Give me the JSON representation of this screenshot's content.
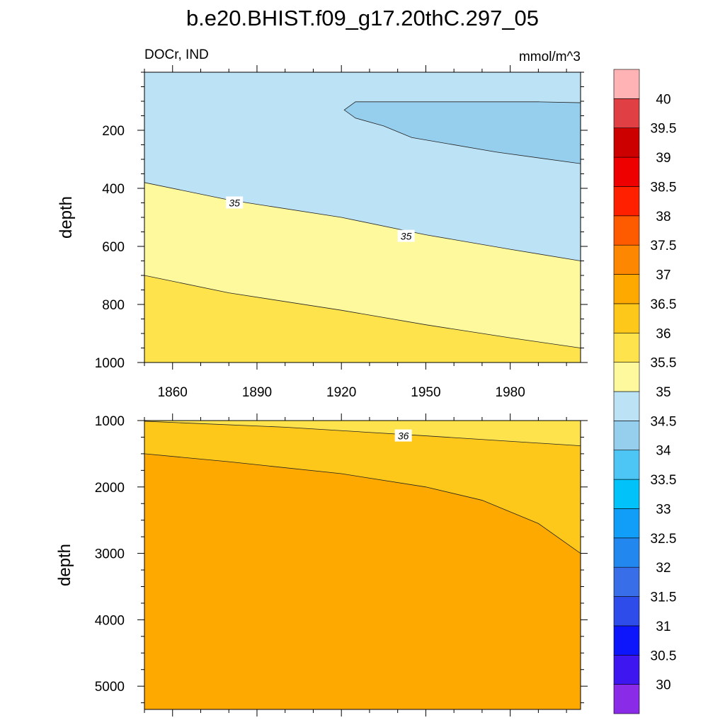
{
  "chart_data": {
    "type": "contour",
    "title": "b.e20.BHIST.f09_g17.20thC.297_05",
    "variable": "DOCr, IND",
    "units": "mmol/m^3",
    "panels": [
      {
        "name": "upper",
        "xlabel": "",
        "ylabel": "depth",
        "xlim": [
          1850,
          2005
        ],
        "ylim": [
          1000,
          0
        ],
        "x_ticks": [
          1860,
          1890,
          1920,
          1950,
          1980
        ],
        "x_tick_labels": [
          "1860",
          "1890",
          "1920",
          "1950",
          "1980"
        ],
        "y_ticks": [
          200,
          400,
          600,
          800,
          1000
        ],
        "y_tick_labels": [
          "200",
          "400",
          "600",
          "800",
          "1000"
        ],
        "contour_labels": [
          {
            "text": "35",
            "x": 1882,
            "y": 450
          },
          {
            "text": "35",
            "x": 1943,
            "y": 565
          }
        ],
        "regions": [
          {
            "level": "<34.5",
            "color": "#96cfee",
            "boundary": [
              [
                1921,
                130
              ],
              [
                1925,
                102
              ],
              [
                1990,
                102
              ],
              [
                2005,
                105
              ],
              [
                2005,
                315
              ],
              [
                1975,
                275
              ],
              [
                1945,
                225
              ],
              [
                1935,
                185
              ],
              [
                1925,
                158
              ]
            ]
          },
          {
            "level": "34.5-35",
            "color": "#bce2f5",
            "boundary_lower": [
              [
                1850,
                380
              ],
              [
                1880,
                440
              ],
              [
                1920,
                500
              ],
              [
                1950,
                560
              ],
              [
                1980,
                610
              ],
              [
                2005,
                650
              ]
            ]
          },
          {
            "level": "35-35.5",
            "color": "#fef99d",
            "boundary_lower": [
              [
                1850,
                700
              ],
              [
                1880,
                760
              ],
              [
                1920,
                820
              ],
              [
                1950,
                870
              ],
              [
                1980,
                915
              ],
              [
                2005,
                950
              ]
            ]
          },
          {
            "level": "35.5-36",
            "color": "#fee34c"
          }
        ]
      },
      {
        "name": "lower",
        "xlabel": "",
        "ylabel": "depth",
        "xlim": [
          1850,
          2005
        ],
        "ylim": [
          5350,
          1000
        ],
        "x_ticks": [
          1860,
          1890,
          1920,
          1950,
          1980
        ],
        "x_tick_labels": [
          "",
          "",
          "",
          "",
          ""
        ],
        "y_ticks": [
          1000,
          2000,
          3000,
          4000,
          5000
        ],
        "y_tick_labels": [
          "1000",
          "2000",
          "3000",
          "4000",
          "5000"
        ],
        "contour_labels": [
          {
            "text": "36",
            "x": 1942,
            "y": 1230
          }
        ],
        "regions": [
          {
            "level": "35.5-36",
            "color": "#fee34c",
            "boundary_lower": [
              [
                1850,
                1010
              ],
              [
                1900,
                1100
              ],
              [
                1950,
                1230
              ],
              [
                2005,
                1380
              ]
            ]
          },
          {
            "level": "36-36.5",
            "color": "#fec81a",
            "boundary_lower": [
              [
                1850,
                1500
              ],
              [
                1880,
                1620
              ],
              [
                1920,
                1800
              ],
              [
                1950,
                2000
              ],
              [
                1970,
                2200
              ],
              [
                1990,
                2550
              ],
              [
                2005,
                3000
              ]
            ]
          },
          {
            "level": "36.5-37",
            "color": "#fda900"
          }
        ]
      }
    ],
    "colorbar": {
      "colors": [
        "#8a2be8",
        "#3d16f0",
        "#0d16fb",
        "#2d4ce9",
        "#386ee8",
        "#2387f0",
        "#119ef8",
        "#02c2fa",
        "#4dc6f5",
        "#96cfee",
        "#bce2f5",
        "#fef99d",
        "#fee34c",
        "#fec81a",
        "#fda900",
        "#fd8700",
        "#fe5a00",
        "#ff2000",
        "#ee0000",
        "#cd0000",
        "#e04043",
        "#ffb3b5"
      ],
      "labels": [
        "30",
        "30.5",
        "31",
        "31.5",
        "32",
        "32.5",
        "33",
        "33.5",
        "34",
        "34.5",
        "35",
        "35.5",
        "36",
        "36.5",
        "37",
        "37.5",
        "38",
        "38.5",
        "39",
        "39.5",
        "40"
      ]
    }
  }
}
